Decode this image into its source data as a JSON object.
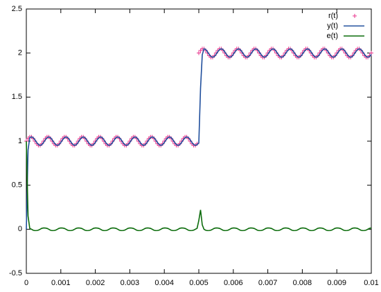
{
  "chart_data": {
    "type": "line",
    "legend": "top-right",
    "grid": false,
    "xlim": [
      0,
      0.01
    ],
    "ylim": [
      -0.5,
      2.5
    ],
    "xticks": [
      0,
      0.001,
      0.002,
      0.003,
      0.004,
      0.005,
      0.006,
      0.007,
      0.008,
      0.009,
      0.01
    ],
    "yticks": [
      -0.5,
      0,
      0.5,
      1,
      1.5,
      2,
      2.5
    ],
    "x": [
      0,
      5e-05,
      0.0001,
      0.00015,
      0.0002,
      0.00025,
      0.0003,
      0.00035,
      0.0004,
      0.00045,
      0.0005,
      0.00055,
      0.0006,
      0.00065,
      0.0007,
      0.00075,
      0.0008,
      0.00085,
      0.0009,
      0.00095,
      0.001,
      0.00105,
      0.0011,
      0.00115,
      0.0012,
      0.00125,
      0.0013,
      0.00135,
      0.0014,
      0.00145,
      0.0015,
      0.00155,
      0.0016,
      0.00165,
      0.0017,
      0.00175,
      0.0018,
      0.00185,
      0.0019,
      0.00195,
      0.002,
      0.00205,
      0.0021,
      0.00215,
      0.0022,
      0.00225,
      0.0023,
      0.00235,
      0.0024,
      0.00245,
      0.0025,
      0.00255,
      0.0026,
      0.00265,
      0.0027,
      0.00275,
      0.0028,
      0.00285,
      0.0029,
      0.00295,
      0.003,
      0.00305,
      0.0031,
      0.00315,
      0.0032,
      0.00325,
      0.0033,
      0.00335,
      0.0034,
      0.00345,
      0.0035,
      0.00355,
      0.0036,
      0.00365,
      0.0037,
      0.00375,
      0.0038,
      0.00385,
      0.0039,
      0.00395,
      0.004,
      0.00405,
      0.0041,
      0.00415,
      0.0042,
      0.00425,
      0.0043,
      0.00435,
      0.0044,
      0.00445,
      0.0045,
      0.00455,
      0.0046,
      0.00465,
      0.0047,
      0.00475,
      0.0048,
      0.00485,
      0.0049,
      0.00495,
      0.005,
      0.00505,
      0.0051,
      0.00515,
      0.0052,
      0.00525,
      0.0053,
      0.00535,
      0.0054,
      0.00545,
      0.0055,
      0.00555,
      0.0056,
      0.00565,
      0.0057,
      0.00575,
      0.0058,
      0.00585,
      0.0059,
      0.00595,
      0.006,
      0.00605,
      0.0061,
      0.00615,
      0.0062,
      0.00625,
      0.0063,
      0.00635,
      0.0064,
      0.00645,
      0.0065,
      0.00655,
      0.0066,
      0.00665,
      0.0067,
      0.00675,
      0.0068,
      0.00685,
      0.0069,
      0.00695,
      0.007,
      0.00705,
      0.0071,
      0.00715,
      0.0072,
      0.00725,
      0.0073,
      0.00735,
      0.0074,
      0.00745,
      0.0075,
      0.00755,
      0.0076,
      0.00765,
      0.0077,
      0.00775,
      0.0078,
      0.00785,
      0.0079,
      0.00795,
      0.008,
      0.00805,
      0.0081,
      0.00815,
      0.0082,
      0.00825,
      0.0083,
      0.00835,
      0.0084,
      0.00845,
      0.0085,
      0.00855,
      0.0086,
      0.00865,
      0.0087,
      0.00875,
      0.0088,
      0.00885,
      0.0089,
      0.00895,
      0.009,
      0.00905,
      0.0091,
      0.00915,
      0.0092,
      0.00925,
      0.0093,
      0.00935,
      0.0094,
      0.00945,
      0.0095,
      0.00955,
      0.0096,
      0.00965,
      0.0097,
      0.00975,
      0.0098,
      0.00985,
      0.0099,
      0.00995,
      0.01
    ],
    "series": [
      {
        "name": "r(t)",
        "color": "#e8338c",
        "style": "points",
        "values": [
          1,
          1.029,
          1.048,
          1.048,
          1.029,
          1,
          0.971,
          0.952,
          0.952,
          0.971,
          1,
          1.029,
          1.048,
          1.048,
          1.029,
          1,
          0.971,
          0.952,
          0.952,
          0.971,
          1,
          1.029,
          1.048,
          1.048,
          1.029,
          1,
          0.971,
          0.952,
          0.952,
          0.971,
          1,
          1.029,
          1.048,
          1.048,
          1.029,
          1,
          0.971,
          0.952,
          0.952,
          0.971,
          1,
          1.029,
          1.048,
          1.048,
          1.029,
          1,
          0.971,
          0.952,
          0.952,
          0.971,
          1,
          1.029,
          1.048,
          1.048,
          1.029,
          1,
          0.971,
          0.952,
          0.952,
          0.971,
          1,
          1.029,
          1.048,
          1.048,
          1.029,
          1,
          0.971,
          0.952,
          0.952,
          0.971,
          1,
          1.029,
          1.048,
          1.048,
          1.029,
          1,
          0.971,
          0.952,
          0.952,
          0.971,
          1,
          1.029,
          1.048,
          1.048,
          1.029,
          1,
          0.971,
          0.952,
          0.952,
          0.971,
          1,
          1.029,
          1.048,
          1.048,
          1.029,
          1,
          0.971,
          0.952,
          0.952,
          0.971,
          2,
          2.029,
          2.048,
          2.048,
          2.029,
          2,
          1.971,
          1.952,
          1.952,
          1.971,
          2,
          2.029,
          2.048,
          2.048,
          2.029,
          2,
          1.971,
          1.952,
          1.952,
          1.971,
          2,
          2.029,
          2.048,
          2.048,
          2.029,
          2,
          1.971,
          1.952,
          1.952,
          1.971,
          2,
          2.029,
          2.048,
          2.048,
          2.029,
          2,
          1.971,
          1.952,
          1.952,
          1.971,
          2,
          2.029,
          2.048,
          2.048,
          2.029,
          2,
          1.971,
          1.952,
          1.952,
          1.971,
          2,
          2.029,
          2.048,
          2.048,
          2.029,
          2,
          1.971,
          1.952,
          1.952,
          1.971,
          2,
          2.029,
          2.048,
          2.048,
          2.029,
          2,
          1.971,
          1.952,
          1.952,
          1.971,
          2,
          2.029,
          2.048,
          2.048,
          2.029,
          2,
          1.971,
          1.952,
          1.952,
          1.971,
          2,
          2.029,
          2.048,
          2.048,
          2.029,
          2,
          1.971,
          1.952,
          1.952,
          1.971,
          2,
          2.029,
          2.048,
          2.048,
          2.029,
          2,
          1.971,
          1.952,
          1.952,
          1.971,
          2
        ]
      },
      {
        "name": "y(t)",
        "color": "#1f4e9c",
        "style": "lines",
        "values": [
          0,
          0.9,
          1.04,
          1.048,
          1.04,
          1.015,
          0.985,
          0.962,
          0.952,
          0.96,
          0.985,
          1.015,
          1.038,
          1.048,
          1.04,
          1.015,
          0.985,
          0.962,
          0.952,
          0.96,
          0.985,
          1.015,
          1.038,
          1.048,
          1.04,
          1.015,
          0.985,
          0.962,
          0.952,
          0.96,
          0.985,
          1.015,
          1.038,
          1.048,
          1.04,
          1.015,
          0.985,
          0.962,
          0.952,
          0.96,
          0.985,
          1.015,
          1.038,
          1.048,
          1.04,
          1.015,
          0.985,
          0.962,
          0.952,
          0.96,
          0.985,
          1.015,
          1.038,
          1.048,
          1.04,
          1.015,
          0.985,
          0.962,
          0.952,
          0.96,
          0.985,
          1.015,
          1.038,
          1.048,
          1.04,
          1.015,
          0.985,
          0.962,
          0.952,
          0.96,
          0.985,
          1.015,
          1.038,
          1.048,
          1.04,
          1.015,
          0.985,
          0.962,
          0.952,
          0.96,
          0.985,
          1.015,
          1.038,
          1.048,
          1.04,
          1.015,
          0.985,
          0.962,
          0.952,
          0.96,
          0.985,
          1.015,
          1.038,
          1.048,
          1.04,
          1.015,
          0.985,
          0.962,
          0.952,
          0.96,
          0.98,
          1.6,
          1.98,
          2.048,
          2.04,
          2.015,
          1.985,
          1.962,
          1.952,
          1.96,
          1.985,
          2.015,
          2.038,
          2.048,
          2.04,
          2.015,
          1.985,
          1.962,
          1.952,
          1.96,
          1.985,
          2.015,
          2.038,
          2.048,
          2.04,
          2.015,
          1.985,
          1.962,
          1.952,
          1.96,
          1.985,
          2.015,
          2.038,
          2.048,
          2.04,
          2.015,
          1.985,
          1.962,
          1.952,
          1.96,
          1.985,
          2.015,
          2.038,
          2.048,
          2.04,
          2.015,
          1.985,
          1.962,
          1.952,
          1.96,
          1.985,
          2.015,
          2.038,
          2.048,
          2.04,
          2.015,
          1.985,
          1.962,
          1.952,
          1.96,
          1.985,
          2.015,
          2.038,
          2.048,
          2.04,
          2.015,
          1.985,
          1.962,
          1.952,
          1.96,
          1.985,
          2.015,
          2.038,
          2.048,
          2.04,
          2.015,
          1.985,
          1.962,
          1.952,
          1.96,
          1.985,
          2.015,
          2.038,
          2.048,
          2.04,
          2.015,
          1.985,
          1.962,
          1.952,
          1.96,
          1.985,
          2.015,
          2.038,
          2.048,
          2.04,
          2.015,
          1.985,
          1.962,
          1.952,
          1.96,
          1.985
        ]
      },
      {
        "name": "e(t)",
        "color": "#0a6b0a",
        "style": "lines",
        "values": [
          1,
          0.15,
          0.01,
          0,
          -0.011,
          -0.015,
          -0.014,
          -0.01,
          0,
          0.011,
          0.015,
          0.014,
          0.01,
          0,
          -0.011,
          -0.015,
          -0.014,
          -0.01,
          0,
          0.011,
          0.015,
          0.014,
          0.01,
          0,
          -0.011,
          -0.015,
          -0.014,
          -0.01,
          0,
          0.011,
          0.015,
          0.014,
          0.01,
          0,
          -0.011,
          -0.015,
          -0.014,
          -0.01,
          0,
          0.011,
          0.015,
          0.014,
          0.01,
          0,
          -0.011,
          -0.015,
          -0.014,
          -0.01,
          0,
          0.011,
          0.015,
          0.014,
          0.01,
          0,
          -0.011,
          -0.015,
          -0.014,
          -0.01,
          0,
          0.011,
          0.015,
          0.014,
          0.01,
          0,
          -0.011,
          -0.015,
          -0.014,
          -0.01,
          0,
          0.011,
          0.015,
          0.014,
          0.01,
          0,
          -0.011,
          -0.015,
          -0.014,
          -0.01,
          0,
          0.011,
          0.015,
          0.014,
          0.01,
          0,
          -0.011,
          -0.015,
          -0.014,
          -0.01,
          0,
          0.011,
          0.015,
          0.014,
          0.01,
          0,
          -0.011,
          -0.015,
          -0.014,
          -0.01,
          0,
          0.011,
          0.1,
          0.22,
          0.05,
          0,
          -0.011,
          -0.015,
          -0.014,
          -0.01,
          0,
          0.011,
          0.015,
          0.014,
          0.01,
          0,
          -0.011,
          -0.015,
          -0.014,
          -0.01,
          0,
          0.011,
          0.015,
          0.014,
          0.01,
          0,
          -0.011,
          -0.015,
          -0.014,
          -0.01,
          0,
          0.011,
          0.015,
          0.014,
          0.01,
          0,
          -0.011,
          -0.015,
          -0.014,
          -0.01,
          0,
          0.011,
          0.015,
          0.014,
          0.01,
          0,
          -0.011,
          -0.015,
          -0.014,
          -0.01,
          0,
          0.011,
          0.015,
          0.014,
          0.01,
          0,
          -0.011,
          -0.015,
          -0.014,
          -0.01,
          0,
          0.011,
          0.015,
          0.014,
          0.01,
          0,
          -0.011,
          -0.015,
          -0.014,
          -0.01,
          0,
          0.011,
          0.015,
          0.014,
          0.01,
          0,
          -0.011,
          -0.015,
          -0.014,
          -0.01,
          0,
          0.011,
          0.015,
          0.014,
          0.01,
          0,
          -0.011,
          -0.015,
          -0.014,
          -0.01,
          0,
          0.011,
          0.015,
          0.014,
          0.01,
          0,
          -0.011,
          -0.015,
          -0.014,
          -0.01,
          0,
          0.011,
          0.015
        ]
      }
    ]
  }
}
